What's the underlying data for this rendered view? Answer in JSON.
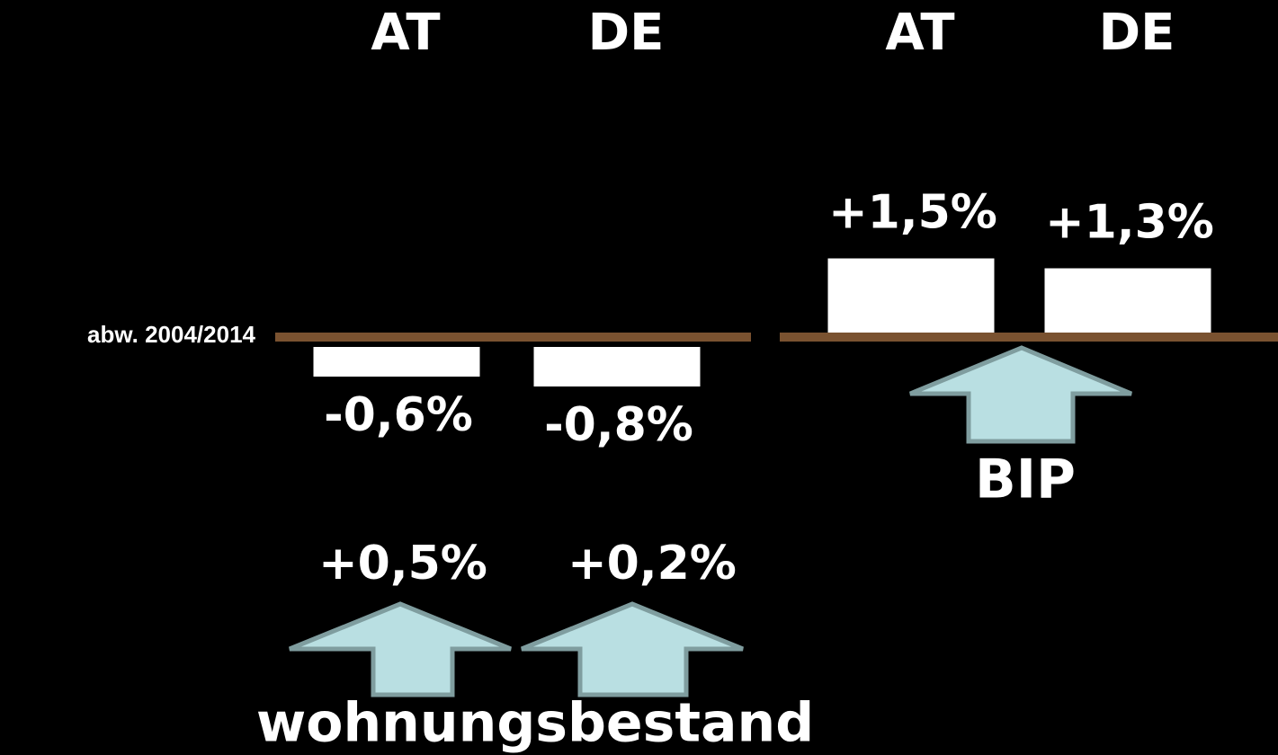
{
  "chart_data": [
    {
      "type": "bar",
      "y_label": "abw. 2004/2014",
      "categories": [
        "AT",
        "DE"
      ],
      "values": [
        -0.6,
        -0.8
      ],
      "value_labels": [
        "-0,6%",
        "-0,8%"
      ],
      "color": "#ffffff",
      "baseline_color": "#7a5230",
      "annotations": [
        "+0,5%",
        "+0,2%",
        "wohnungsbestand"
      ]
    },
    {
      "type": "bar",
      "categories": [
        "AT",
        "DE"
      ],
      "values": [
        1.5,
        1.3
      ],
      "value_labels": [
        "+1,5%",
        "+1,3%"
      ],
      "color": "#ffffff",
      "baseline_color": "#7a5230",
      "annotations": [
        "BIP"
      ]
    }
  ]
}
